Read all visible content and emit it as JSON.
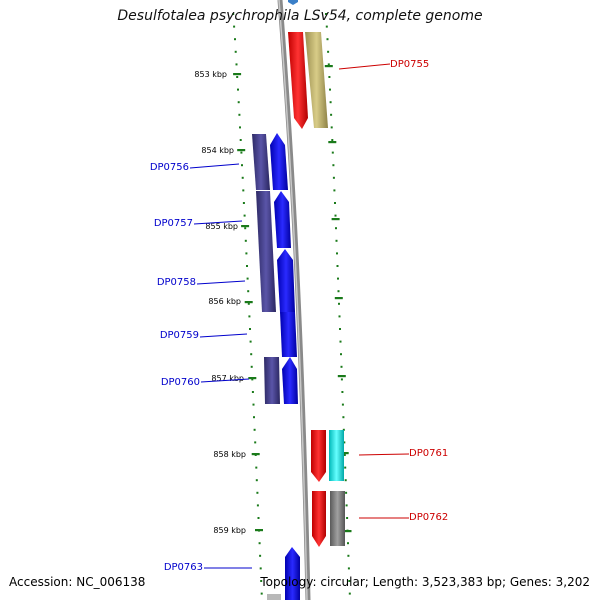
{
  "title": "Desulfotalea psychrophila LSv54, complete genome",
  "footer": {
    "accession": "Accession: NC_006138",
    "topology": "Topology: circular; Length: 3,523,383 bp; Genes: 3,202"
  },
  "colors": {
    "forward_label": "#0000cc",
    "reverse_label": "#cc0000",
    "tick": "#1a7a1a",
    "backbone": "#8a8a8a"
  },
  "kbp_ticks": [
    "853 kbp",
    "854 kbp",
    "855 kbp",
    "856 kbp",
    "857 kbp",
    "858 kbp",
    "859 kbp"
  ],
  "gene_labels": {
    "DP0755": "DP0755",
    "DP0756": "DP0756",
    "DP0757": "DP0757",
    "DP0758": "DP0758",
    "DP0759": "DP0759",
    "DP0760": "DP0760",
    "DP0761": "DP0761",
    "DP0762": "DP0762",
    "DP0763": "DP0763"
  }
}
